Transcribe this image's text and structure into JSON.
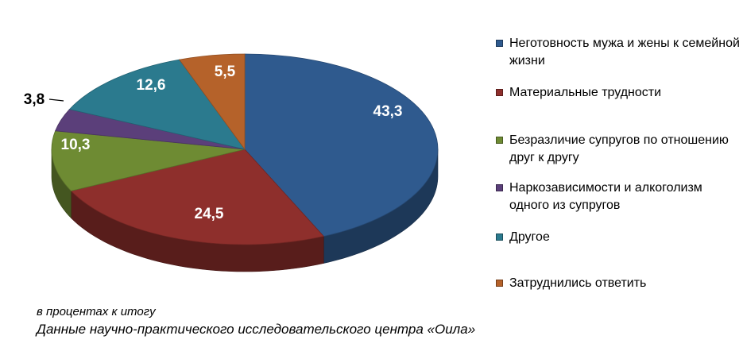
{
  "chart_data": {
    "type": "pie",
    "categories": [
      "Неготовность мужа и жены к семейной жизни",
      "Материальные трудности",
      "Безразличие супругов по отношению друг к другу",
      "Наркозависимости и алкоголизм одного из супругов",
      "Другое",
      "Затруднились ответить"
    ],
    "values": [
      43.3,
      24.5,
      10.3,
      3.8,
      12.6,
      5.5
    ],
    "labels": [
      "43,3",
      "24,5",
      "10,3",
      "3,8",
      "12,6",
      "5,5"
    ],
    "colors": [
      "#2f5a8e",
      "#8e2f2c",
      "#6e8b33",
      "#5b3f7a",
      "#2b7a8e",
      "#b5622a"
    ],
    "legend_placement": "right",
    "style": "3d"
  },
  "legend": [
    "Неготовность мужа и жены к семейной жизни",
    "Материальные трудности",
    "Безразличие супругов по отношению друг к другу",
    "Наркозависимости и алкоголизм одного из супругов",
    "Другое",
    "Затруднились ответить"
  ],
  "note": "в процентах к итогу",
  "source": "Данные научно-практического исследовательского центра «Оила»"
}
